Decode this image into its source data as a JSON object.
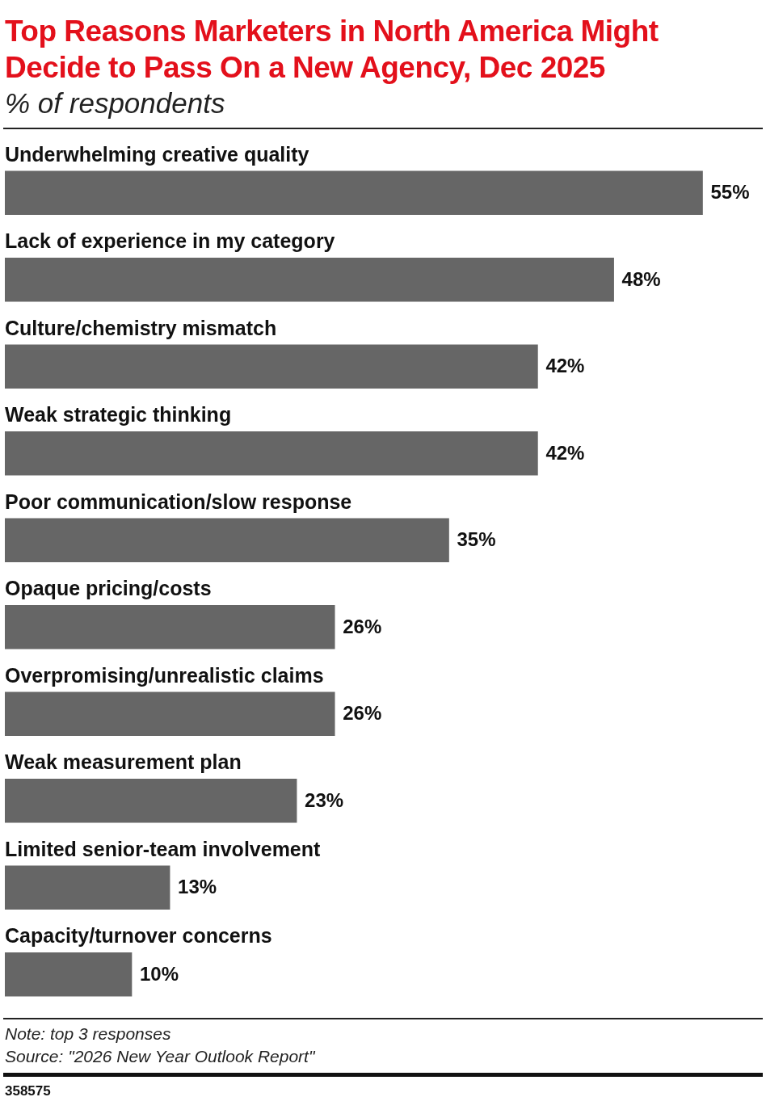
{
  "chart_data": {
    "type": "bar",
    "orientation": "horizontal",
    "title": "Top Reasons Marketers in North America Might Decide to Pass On a New Agency, Dec 2025",
    "subtitle": "% of respondents",
    "categories": [
      "Underwhelming creative quality",
      "Lack of experience in my category",
      "Culture/chemistry mismatch",
      "Weak strategic thinking",
      "Poor communication/slow response",
      "Opaque pricing/costs",
      "Overpromising/unrealistic claims",
      "Weak measurement plan",
      "Limited senior-team involvement",
      "Capacity/turnover concerns"
    ],
    "values": [
      55,
      48,
      42,
      42,
      35,
      26,
      26,
      23,
      13,
      10
    ],
    "value_labels": [
      "55%",
      "48%",
      "42%",
      "42%",
      "35%",
      "26%",
      "26%",
      "23%",
      "13%",
      "10%"
    ],
    "color": "#666666",
    "annotations": [
      "Note: top 3 responses",
      "Source: \"2026 New Year Outlook Report\"",
      "358575"
    ]
  }
}
